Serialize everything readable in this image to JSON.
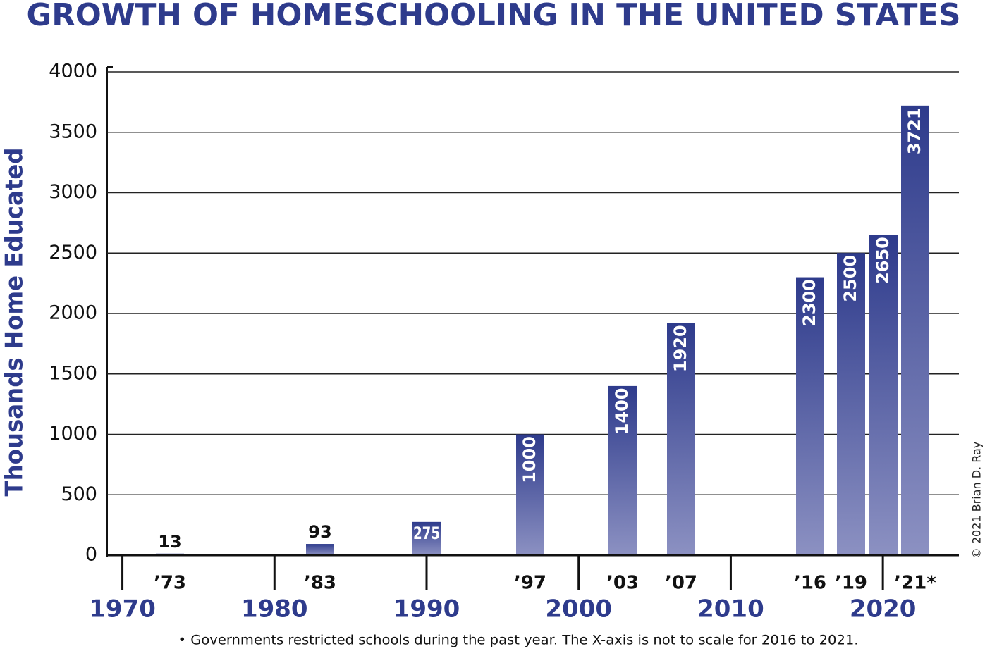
{
  "chart_data": {
    "type": "bar",
    "title": "GROWTH OF HOMESCHOOLING IN THE UNITED STATES",
    "y_label": "Thousands Home Educated",
    "categories": [
      "’73",
      "’83",
      null,
      "’97",
      "’03",
      "’07",
      "’16",
      "’19",
      null,
      "’21*"
    ],
    "values": [
      13,
      93,
      275,
      1000,
      1400,
      1920,
      2300,
      2500,
      2650,
      3721
    ],
    "color": "#2e3b8c",
    "ylim": [
      0,
      4000
    ],
    "yticks": [
      0,
      500,
      1000,
      1500,
      2000,
      2500,
      3000,
      3500,
      4000
    ],
    "xlim": [
      1969,
      2025
    ],
    "xticks": [
      1970,
      1980,
      1990,
      2000,
      2010,
      2020
    ],
    "grid": true,
    "footnote": "• Governments restricted schools during the past year. The X-axis is not to scale for 2016 to 2021.",
    "credit": "© 2021 Brian D. Ray"
  }
}
